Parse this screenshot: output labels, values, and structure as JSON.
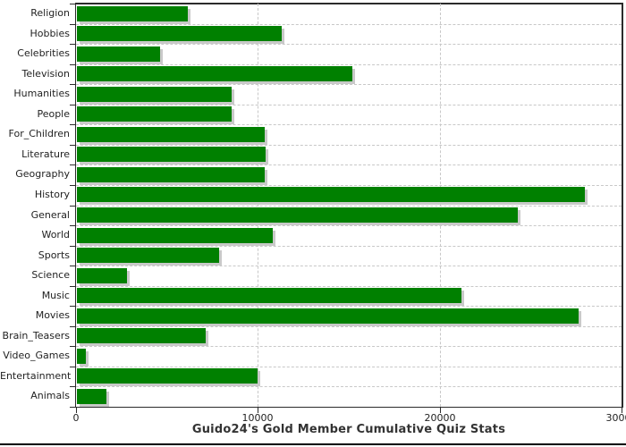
{
  "title": "Guido24's Gold Member Cumulative Quiz Stats",
  "chart_data": {
    "type": "bar",
    "orientation": "horizontal",
    "title": "Guido24's Gold Member Cumulative Quiz Stats",
    "xlabel": "",
    "ylabel": "",
    "categories": [
      "Religion",
      "Hobbies",
      "Celebrities",
      "Television",
      "Humanities",
      "People",
      "For_Children",
      "Literature",
      "Geography",
      "History",
      "General",
      "World",
      "Sports",
      "Science",
      "Music",
      "Movies",
      "Brain_Teasers",
      "Video_Games",
      "Entertainment",
      "Animals"
    ],
    "values": [
      6100,
      11250,
      4550,
      15150,
      8500,
      8500,
      10350,
      10400,
      10350,
      27950,
      24250,
      10750,
      7800,
      2750,
      21150,
      27600,
      7100,
      490,
      9950,
      1600
    ],
    "xlim": [
      0,
      30000
    ],
    "xticks": [
      0,
      10000,
      20000,
      30000
    ],
    "xtick_labels": [
      "0",
      "10000",
      "20000",
      "30000"
    ],
    "grid": "dashed",
    "legend": "none",
    "colors": {
      "bar": "#008000",
      "bar_shadow": "#c9c9c9",
      "gridline": "#c8c8c8",
      "frame": "#2b2b2b",
      "text": "#222222",
      "title_text": "#333333",
      "background": "#ffffff"
    }
  }
}
